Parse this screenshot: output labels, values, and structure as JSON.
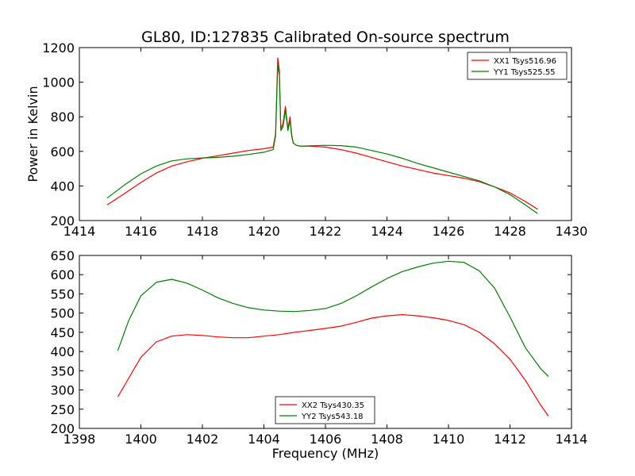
{
  "figure": {
    "title": "GL80, ID:127835 Calibrated On-source spectrum",
    "xlabel": "Frequency (MHz)"
  },
  "chart_data": [
    {
      "type": "line",
      "ylabel": "Power in Kelvin",
      "xlim": [
        1414,
        1430
      ],
      "ylim": [
        200,
        1200
      ],
      "xticks": [
        1414,
        1416,
        1418,
        1420,
        1422,
        1424,
        1426,
        1428,
        1430
      ],
      "yticks": [
        200,
        400,
        600,
        800,
        1000,
        1200
      ],
      "legend": "top-right",
      "series": [
        {
          "name": "XX1 Tsys516.96",
          "color": "#ff0000",
          "x": [
            1414.9,
            1415.5,
            1416,
            1416.5,
            1417,
            1417.5,
            1418,
            1418.5,
            1419,
            1419.5,
            1420,
            1420.3,
            1420.38,
            1420.45,
            1420.5,
            1420.55,
            1420.62,
            1420.7,
            1420.78,
            1420.85,
            1420.9,
            1420.95,
            1421.05,
            1421.2,
            1421.5,
            1422,
            1422.5,
            1423,
            1423.5,
            1424,
            1424.5,
            1425,
            1425.5,
            1426,
            1426.5,
            1427,
            1427.5,
            1428,
            1428.5,
            1428.9
          ],
          "values": [
            290,
            360,
            420,
            475,
            515,
            540,
            560,
            575,
            590,
            605,
            615,
            625,
            700,
            1140,
            1070,
            730,
            760,
            860,
            730,
            800,
            700,
            650,
            635,
            630,
            630,
            625,
            610,
            590,
            565,
            540,
            515,
            495,
            475,
            460,
            445,
            425,
            395,
            360,
            310,
            265
          ]
        },
        {
          "name": "YY1 Tsys525.55",
          "color": "#008000",
          "x": [
            1414.9,
            1415.5,
            1416,
            1416.5,
            1417,
            1417.5,
            1418,
            1418.5,
            1419,
            1419.5,
            1420,
            1420.3,
            1420.38,
            1420.45,
            1420.5,
            1420.55,
            1420.62,
            1420.7,
            1420.78,
            1420.85,
            1420.9,
            1420.95,
            1421.05,
            1421.2,
            1421.5,
            1422,
            1422.5,
            1423,
            1423.5,
            1424,
            1424.5,
            1425,
            1425.5,
            1426,
            1426.5,
            1427,
            1427.5,
            1428,
            1428.5,
            1428.9
          ],
          "values": [
            330,
            410,
            470,
            515,
            545,
            557,
            562,
            565,
            572,
            582,
            595,
            610,
            690,
            1100,
            1040,
            720,
            740,
            840,
            720,
            780,
            690,
            650,
            635,
            630,
            632,
            635,
            633,
            625,
            605,
            585,
            560,
            530,
            505,
            480,
            455,
            430,
            395,
            350,
            290,
            240
          ]
        }
      ]
    },
    {
      "type": "line",
      "ylabel": "",
      "xlim": [
        1398,
        1414
      ],
      "ylim": [
        200,
        650
      ],
      "xticks": [
        1398,
        1400,
        1402,
        1404,
        1406,
        1408,
        1410,
        1412,
        1414
      ],
      "yticks": [
        200,
        250,
        300,
        350,
        400,
        450,
        500,
        550,
        600,
        650
      ],
      "legend": "bottom-center",
      "series": [
        {
          "name": "XX2 Tsys430.35",
          "color": "#ff0000",
          "x": [
            1399.25,
            1399.6,
            1400,
            1400.5,
            1401,
            1401.5,
            1402,
            1402.5,
            1403,
            1403.5,
            1404,
            1404.5,
            1405,
            1405.5,
            1406,
            1406.5,
            1407,
            1407.5,
            1408,
            1408.5,
            1409,
            1409.5,
            1410,
            1410.5,
            1411,
            1411.5,
            1412,
            1412.5,
            1413,
            1413.25
          ],
          "values": [
            282,
            330,
            385,
            425,
            440,
            444,
            442,
            438,
            436,
            436,
            440,
            444,
            450,
            455,
            460,
            466,
            476,
            487,
            493,
            496,
            493,
            488,
            481,
            470,
            450,
            420,
            380,
            325,
            260,
            232
          ]
        },
        {
          "name": "YY2 Tsys543.18",
          "color": "#008000",
          "x": [
            1399.25,
            1399.6,
            1400,
            1400.5,
            1401,
            1401.5,
            1402,
            1402.5,
            1403,
            1403.5,
            1404,
            1404.5,
            1405,
            1405.5,
            1406,
            1406.5,
            1407,
            1407.5,
            1408,
            1408.5,
            1409,
            1409.5,
            1410,
            1410.5,
            1411,
            1411.5,
            1412,
            1412.5,
            1413,
            1413.25
          ],
          "values": [
            402,
            480,
            545,
            580,
            588,
            578,
            560,
            540,
            525,
            514,
            508,
            505,
            504,
            507,
            512,
            525,
            545,
            568,
            590,
            608,
            620,
            630,
            635,
            632,
            610,
            565,
            490,
            410,
            355,
            335
          ]
        }
      ]
    }
  ]
}
